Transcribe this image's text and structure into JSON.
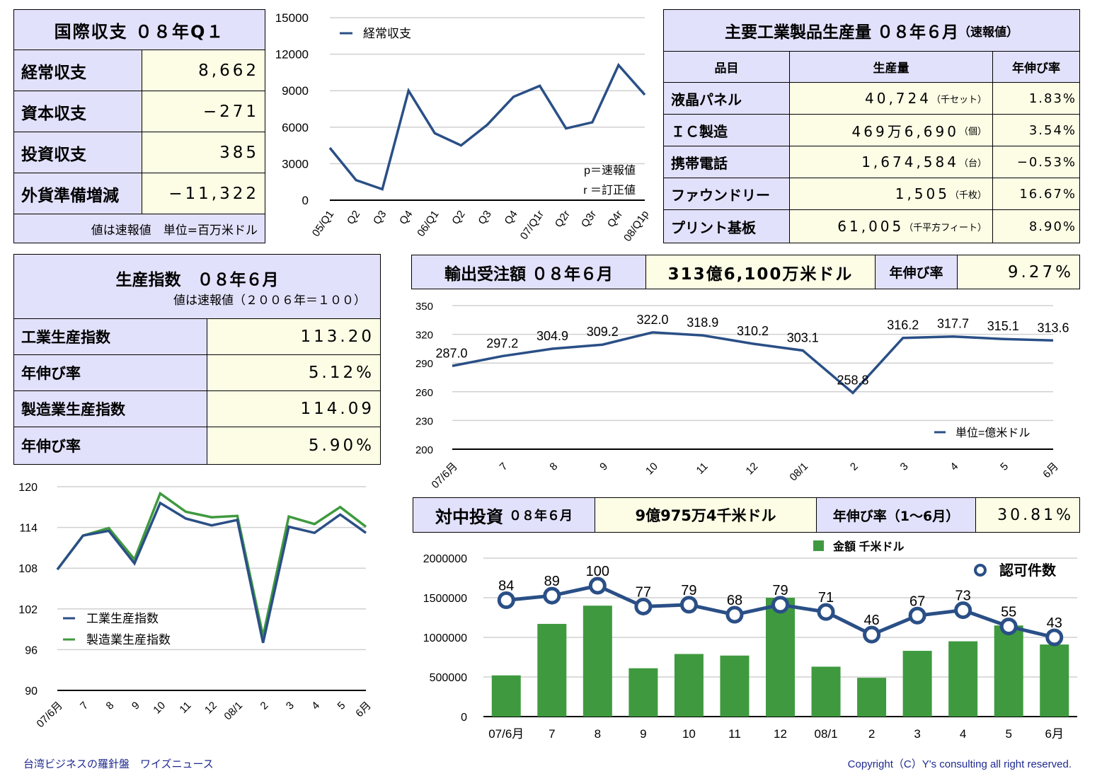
{
  "bop": {
    "title": "国際収支 ０８年Q１",
    "rows": [
      {
        "label": "経常収支",
        "value": "8,662"
      },
      {
        "label": "資本収支",
        "value": "−271"
      },
      {
        "label": "投資収支",
        "value": "385"
      },
      {
        "label": "外貨準備増減",
        "value": "−11,322"
      }
    ],
    "note": "値は速報値　単位=百万米ドル"
  },
  "production_table": {
    "title": "主要工業製品生産量 ０８年６月",
    "title_suffix": "（速報値）",
    "headers": [
      "品目",
      "生産量",
      "年伸び率"
    ],
    "rows": [
      {
        "item": "液晶パネル",
        "qty": "40,724",
        "unit": "（千セット）",
        "growth": "1.83%"
      },
      {
        "item": "ＩＣ製造",
        "qty": "469万6,690",
        "unit": "（個）",
        "growth": "3.54%"
      },
      {
        "item": "携帯電話",
        "qty": "1,674,584",
        "unit": "（台）",
        "growth": "−0.53%"
      },
      {
        "item": "ファウンドリー",
        "qty": "1,505",
        "unit": "（千枚）",
        "growth": "16.67%"
      },
      {
        "item": "プリント基板",
        "qty": "61,005",
        "unit": "（千平方フィート）",
        "growth": "8.90%"
      }
    ]
  },
  "prod_index": {
    "title": "生産指数　０８年６月",
    "subtitle": "値は速報値（２００６年＝１００）",
    "rows": [
      {
        "label": "工業生産指数",
        "value": "113.20"
      },
      {
        "label": "年伸び率",
        "value": "5.12%"
      },
      {
        "label": "製造業生産指数",
        "value": "114.09"
      },
      {
        "label": "年伸び率",
        "value": "5.90%"
      }
    ]
  },
  "export_orders": {
    "label": "輸出受注額 ０８年６月",
    "value": "313億6,100万米ドル",
    "growth_label": "年伸び率",
    "growth": "9.27%"
  },
  "china_invest": {
    "label": "対中投資",
    "label_sub": "０８年６月",
    "value": "9億975万4千米ドル",
    "growth_label": "年伸び率（1～6月）",
    "growth": "30.81%"
  },
  "footer": {
    "left": "台湾ビジネスの羅針盤　ワイズニュース",
    "right": "Copyright（C）Y's consulting all right reserved."
  },
  "colors": {
    "blue": "#2a4f86",
    "green": "#3f9a3f",
    "header_bg": "#e2e1fb",
    "value_bg": "#fdfde6"
  },
  "chart_data": [
    {
      "type": "line",
      "id": "current-account",
      "categories": [
        "05/Q1",
        "Q2",
        "Q3",
        "Q4",
        "06/Q1",
        "Q2",
        "Q3",
        "Q4",
        "07/Q1r",
        "Q2r",
        "Q3r",
        "Q4r",
        "08/Q1p"
      ],
      "series": [
        {
          "name": "経常収支",
          "values": [
            4300,
            1650,
            900,
            9000,
            5500,
            4500,
            6200,
            8500,
            9400,
            5900,
            6400,
            11100,
            8662
          ]
        }
      ],
      "ylim": [
        0,
        15000
      ],
      "yticks": [
        0,
        3000,
        6000,
        9000,
        12000,
        15000
      ],
      "annotations": [
        "p＝速報値",
        "r ＝訂正値"
      ],
      "legend": "top-left"
    },
    {
      "type": "line",
      "id": "export-orders",
      "categories": [
        "07/6月",
        "7",
        "8",
        "9",
        "10",
        "11",
        "12",
        "08/1",
        "2",
        "3",
        "4",
        "5",
        "6月"
      ],
      "series": [
        {
          "name": "単位=億米ドル",
          "values": [
            287.0,
            297.2,
            304.9,
            309.2,
            322.0,
            318.9,
            310.2,
            303.1,
            258.8,
            316.2,
            317.7,
            315.1,
            313.6
          ]
        }
      ],
      "data_labels": [
        "287.0",
        "297.2",
        "304.9",
        "309.2",
        "322.0",
        "318.9",
        "310.2",
        "303.1",
        "258.8",
        "316.2",
        "317.7",
        "315.1",
        "313.6"
      ],
      "ylim": [
        200,
        350
      ],
      "yticks": [
        200,
        230,
        260,
        290,
        320,
        350
      ],
      "legend": "bottom-right"
    },
    {
      "type": "line",
      "id": "production-index",
      "categories": [
        "07/6月",
        "7",
        "8",
        "9",
        "10",
        "11",
        "12",
        "08/1",
        "2",
        "3",
        "4",
        "5",
        "6月"
      ],
      "series": [
        {
          "name": "工業生産指数",
          "values": [
            107.8,
            112.8,
            113.5,
            108.7,
            117.6,
            115.3,
            114.3,
            115.1,
            97.0,
            114.1,
            113.2,
            115.9,
            113.2
          ]
        },
        {
          "name": "製造業生産指数",
          "values": [
            107.8,
            112.8,
            113.9,
            109.3,
            119.0,
            116.3,
            115.5,
            115.7,
            98.0,
            115.6,
            114.5,
            117.0,
            114.1
          ]
        }
      ],
      "ylim": [
        90,
        120
      ],
      "yticks": [
        90,
        96,
        102,
        108,
        114,
        120
      ],
      "legend": "bottom-left"
    },
    {
      "type": "bar",
      "id": "china-investment",
      "categories": [
        "07/6月",
        "7",
        "8",
        "9",
        "10",
        "11",
        "12",
        "08/1",
        "2",
        "3",
        "4",
        "5",
        "6月"
      ],
      "series": [
        {
          "name": "金額 千米ドル",
          "type": "bar",
          "values": [
            520000,
            1170000,
            1400000,
            610000,
            790000,
            770000,
            1500000,
            630000,
            490000,
            830000,
            950000,
            1150000,
            909754
          ]
        },
        {
          "name": "認可件数",
          "type": "line",
          "values": [
            84,
            89,
            100,
            77,
            79,
            68,
            79,
            71,
            46,
            67,
            73,
            55,
            43
          ]
        }
      ],
      "ylim": [
        0,
        2000000
      ],
      "yticks": [
        0,
        500000,
        1000000,
        1500000,
        2000000
      ],
      "legend": "top"
    }
  ]
}
